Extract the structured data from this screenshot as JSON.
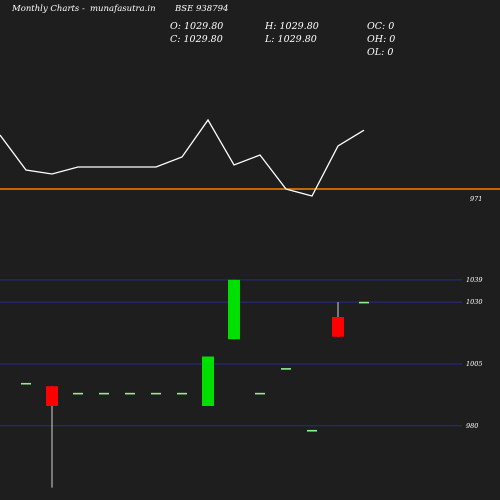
{
  "header": {
    "title": "Monthly Charts",
    "site": "munafasutra.in",
    "symbol": "BSE 938794",
    "dash": "-"
  },
  "ohlc": {
    "open": "O: 1029.80",
    "high": "H: 1029.80",
    "close": "C: 1029.80",
    "low": "L: 1029.80",
    "oc": "OC: 0",
    "oh": "OH: 0",
    "ol": "OL: 0"
  },
  "colors": {
    "background": "#1e1e1e",
    "line": "#ffffff",
    "level_line": "#ff7f00",
    "up": "#00e000",
    "down": "#ff0000",
    "flat": "#90ee90",
    "grid": "#2a2a8a"
  },
  "chart_data": [
    {
      "type": "line",
      "values": [
        1025,
        990,
        986,
        993,
        993,
        993,
        993,
        1003,
        1040,
        995,
        1005,
        971,
        964,
        1014,
        1029.8
      ],
      "reference_line": 971,
      "tick_labels": [
        "971"
      ],
      "ylim": [
        950,
        1060
      ]
    },
    {
      "type": "candlestick",
      "candles": [
        {
          "open": 997,
          "close": 997,
          "high": 997,
          "low": 997
        },
        {
          "open": 996,
          "close": 988,
          "high": 996,
          "low": 955
        },
        {
          "open": 993,
          "close": 993,
          "high": 993,
          "low": 993
        },
        {
          "open": 993,
          "close": 993,
          "high": 993,
          "low": 993
        },
        {
          "open": 993,
          "close": 993,
          "high": 993,
          "low": 993
        },
        {
          "open": 993,
          "close": 993,
          "high": 993,
          "low": 993
        },
        {
          "open": 993,
          "close": 993,
          "high": 993,
          "low": 993
        },
        {
          "open": 988,
          "close": 1008,
          "high": 1008,
          "low": 988
        },
        {
          "open": 1015,
          "close": 1039,
          "high": 1039,
          "low": 1015
        },
        {
          "open": 993,
          "close": 993,
          "high": 993,
          "low": 993
        },
        {
          "open": 1003,
          "close": 1003,
          "high": 1003,
          "low": 1003
        },
        {
          "open": 978,
          "close": 978,
          "high": 978,
          "low": 978
        },
        {
          "open": 1024,
          "close": 1016,
          "high": 1030,
          "low": 1016
        },
        {
          "open": 1029.8,
          "close": 1029.8,
          "high": 1029.8,
          "low": 1029.8
        }
      ],
      "gridlines": [
        1039,
        1030,
        1005,
        980
      ],
      "tick_labels": [
        "1039",
        "1030",
        "1005",
        "980"
      ],
      "ylim": [
        950,
        1045
      ]
    }
  ]
}
